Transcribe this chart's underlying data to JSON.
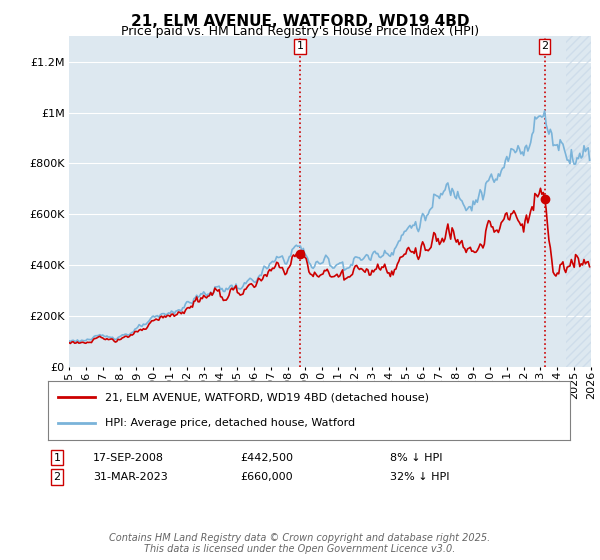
{
  "title": "21, ELM AVENUE, WATFORD, WD19 4BD",
  "subtitle": "Price paid vs. HM Land Registry's House Price Index (HPI)",
  "ylim": [
    0,
    1300000
  ],
  "yticks": [
    0,
    200000,
    400000,
    600000,
    800000,
    1000000,
    1200000
  ],
  "hpi_color": "#7ab3d9",
  "price_color": "#cc0000",
  "marker1_year": 2008.72,
  "marker1_price": 442500,
  "marker1_label": "1",
  "marker1_date": "17-SEP-2008",
  "marker1_amt": "£442,500",
  "marker1_pct": "8% ↓ HPI",
  "marker2_year": 2023.25,
  "marker2_price": 660000,
  "marker2_label": "2",
  "marker2_date": "31-MAR-2023",
  "marker2_amt": "£660,000",
  "marker2_pct": "32% ↓ HPI",
  "legend_line1": "21, ELM AVENUE, WATFORD, WD19 4BD (detached house)",
  "legend_line2": "HPI: Average price, detached house, Watford",
  "footer": "Contains HM Land Registry data © Crown copyright and database right 2025.\nThis data is licensed under the Open Government Licence v3.0.",
  "background_color": "#ffffff",
  "plot_bg_color": "#dde8f0",
  "grid_color": "#ffffff",
  "vline_color": "#cc0000",
  "hatch_color": "#c8d8e8",
  "title_fontsize": 11,
  "subtitle_fontsize": 9,
  "tick_fontsize": 8,
  "legend_fontsize": 8,
  "footer_fontsize": 7
}
